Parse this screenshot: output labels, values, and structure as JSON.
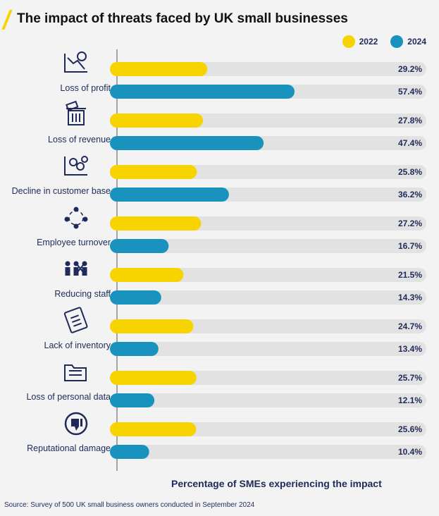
{
  "title": "The impact of threats faced by UK small businesses",
  "source": "Source: Survey of 500 UK small business owners conducted in September 2024",
  "colors": {
    "y2022": "#f7d400",
    "y2024": "#1993bd",
    "track": "#e2e2e2",
    "text": "#1f2a5a"
  },
  "chart_data": {
    "type": "bar",
    "orientation": "horizontal",
    "title": "The impact of threats faced by UK small businesses",
    "xlabel": "Percentage of SMEs experiencing the impact",
    "ylabel": "",
    "xlim": [
      0,
      100
    ],
    "grid": false,
    "legend_position": "top-right",
    "categories": [
      "Loss of profit",
      "Loss of revenue",
      "Decline in customer base",
      "Employee turnover",
      "Reducing staff",
      "Lack of inventory",
      "Loss of personal data",
      "Reputational damage"
    ],
    "icons": [
      "falling-chart-icon",
      "trash-money-icon",
      "customers-decline-icon",
      "turnover-cycle-icon",
      "staff-cut-icon",
      "clipboard-list-icon",
      "folder-documents-icon",
      "thumbs-down-icon"
    ],
    "series": [
      {
        "name": "2022",
        "values": [
          29.2,
          27.8,
          25.8,
          27.2,
          21.5,
          24.7,
          25.7,
          25.6
        ],
        "labels": [
          "29.2%",
          "27.8%",
          "25.8%",
          "27.2%",
          "21.5%",
          "24.7%",
          "25.7%",
          "25.6%"
        ]
      },
      {
        "name": "2024",
        "values": [
          57.4,
          47.4,
          36.2,
          16.7,
          14.3,
          13.4,
          12.1,
          10.4
        ],
        "labels": [
          "57.4%",
          "47.4%",
          "36.2%",
          "16.7%",
          "14.3%",
          "13.4%",
          "12.1%",
          "10.4%"
        ]
      }
    ]
  }
}
